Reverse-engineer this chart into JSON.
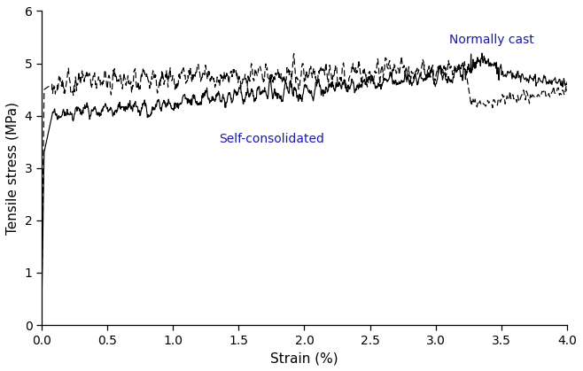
{
  "title": "",
  "xlabel": "Strain (%)",
  "ylabel": "Tensile stress (MPa)",
  "xlim": [
    0,
    4.0
  ],
  "ylim": [
    0,
    6
  ],
  "xticks": [
    0.0,
    0.5,
    1.0,
    1.5,
    2.0,
    2.5,
    3.0,
    3.5,
    4.0
  ],
  "yticks": [
    0,
    1,
    2,
    3,
    4,
    5,
    6
  ],
  "label_normally_cast": "Normally cast",
  "label_self_consolidated": "Self-consolidated",
  "label_nc_color": "#1a1aaa",
  "label_sc_color": "#1a1aaa",
  "line_color": "#000000",
  "background_color": "#ffffff",
  "figsize": [
    6.58,
    4.19
  ],
  "dpi": 100
}
